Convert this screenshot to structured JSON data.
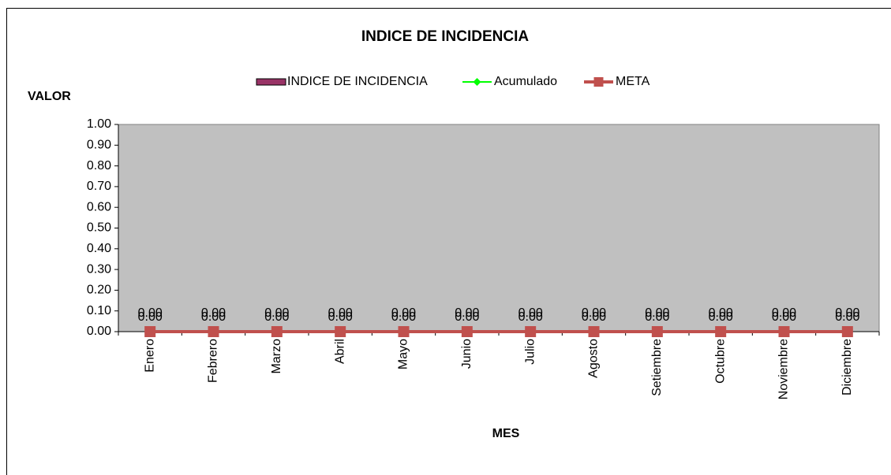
{
  "chart_data": {
    "type": "bar-line",
    "title": "INDICE DE INCIDENCIA",
    "y_label": "VALOR",
    "x_label": "MES",
    "categories": [
      "Enero",
      "Febrero",
      "Marzo",
      "Abril",
      "Mayo",
      "Junio",
      "Julio",
      "Agosto",
      "Setiembre",
      "Octubre",
      "Noviembre",
      "Diciembre"
    ],
    "series": [
      {
        "name": "INDICE DE INCIDENCIA",
        "kind": "bar",
        "color": "#993366",
        "values": [
          0,
          0,
          0,
          0,
          0,
          0,
          0,
          0,
          0,
          0,
          0,
          0
        ],
        "value_labels": [
          "0.00",
          "0.00",
          "0.00",
          "0.00",
          "0.00",
          "0.00",
          "0.00",
          "0.00",
          "0.00",
          "0.00",
          "0.00",
          "0.00"
        ]
      },
      {
        "name": "Acumulado",
        "kind": "line",
        "marker": "diamond",
        "color": "#00ff00",
        "values": [
          0,
          0,
          0,
          0,
          0,
          0,
          0,
          0,
          0,
          0,
          0,
          0
        ],
        "value_labels": [
          "0.00",
          "0.00",
          "0.00",
          "0.00",
          "0.00",
          "0.00",
          "0.00",
          "0.00",
          "0.00",
          "0.00",
          "0.00",
          "0.00"
        ]
      },
      {
        "name": "META",
        "kind": "line",
        "marker": "square",
        "color": "#c0504d",
        "values": [
          0,
          0,
          0,
          0,
          0,
          0,
          0,
          0,
          0,
          0,
          0,
          0
        ]
      }
    ],
    "ylim": [
      0,
      1
    ],
    "yticks": [
      {
        "value": 0,
        "label": "0.00"
      },
      {
        "value": 0.1,
        "label": "0.10"
      },
      {
        "value": 0.2,
        "label": "0.20"
      },
      {
        "value": 0.3,
        "label": "0.30"
      },
      {
        "value": 0.4,
        "label": "0.40"
      },
      {
        "value": 0.5,
        "label": "0.50"
      },
      {
        "value": 0.6,
        "label": "0.60"
      },
      {
        "value": 0.7,
        "label": "0.70"
      },
      {
        "value": 0.8,
        "label": "0.80"
      },
      {
        "value": 0.9,
        "label": "0.90"
      },
      {
        "value": 1,
        "label": "1.00"
      }
    ],
    "legend": "top"
  }
}
